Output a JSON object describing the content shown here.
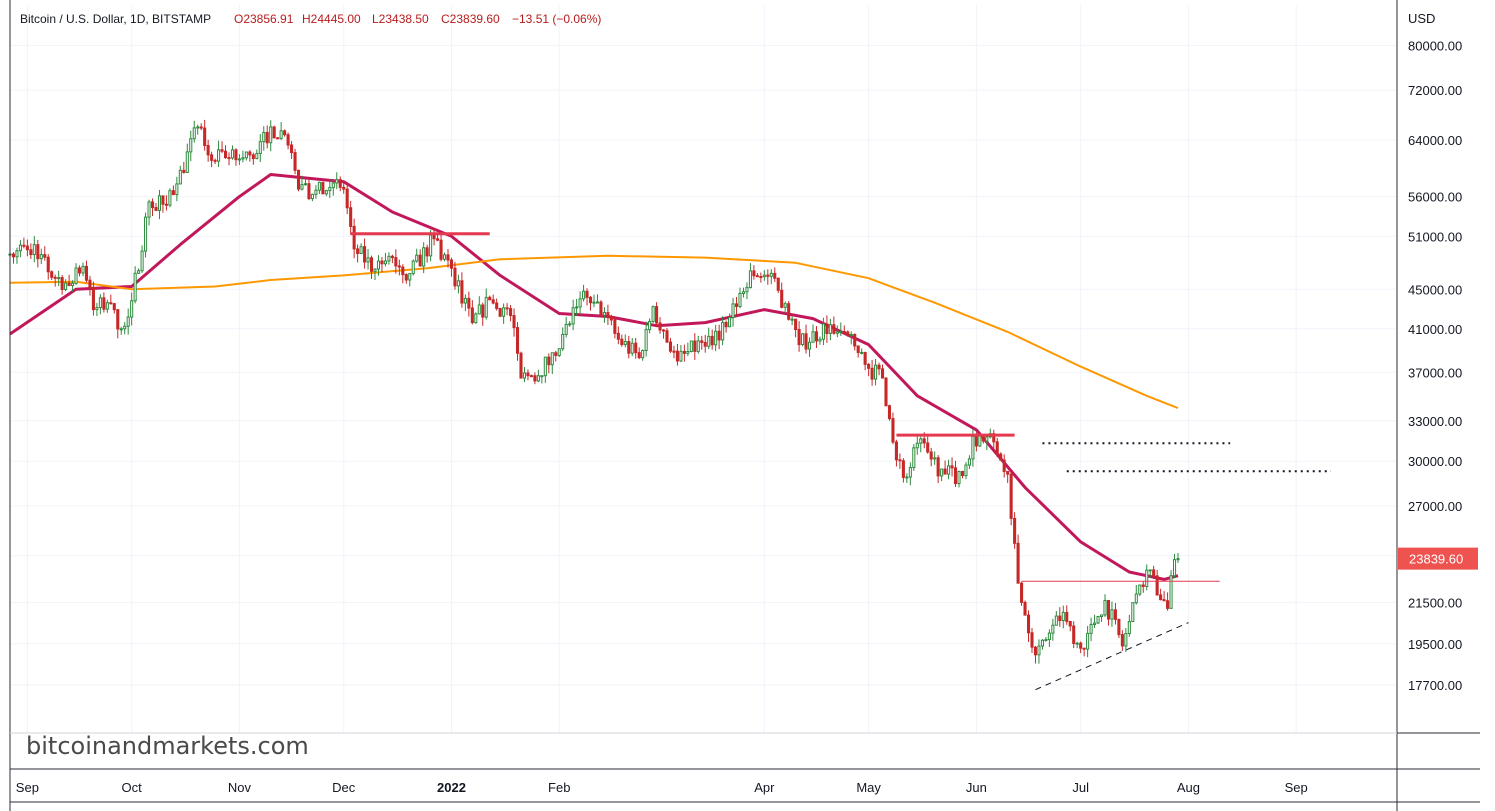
{
  "legend": {
    "symbol": "Bitcoin / U.S. Dollar, 1D, BITSTAMP",
    "open": "O23856.91",
    "high": "H24445.00",
    "low": "L23438.50",
    "close": "C23839.60",
    "change": "−13.51 (−0.06%)"
  },
  "watermark": "bitcoinandmarkets.com",
  "colors": {
    "up": "#26a69a",
    "up_body": "#2e8b3e",
    "down": "#c62828",
    "ma_short": "#c2185b",
    "ma_long": "#ff9800",
    "resistance": "#e53950",
    "price_label_bg": "#ef5350",
    "grid": "#f0f3fa",
    "text": "#131722",
    "legend_values": "#b71c1c"
  },
  "chart_data": {
    "type": "candlestick",
    "title": "Bitcoin / U.S. Dollar, 1D, BITSTAMP",
    "currency": "USD",
    "yscale": "log",
    "ylim": [
      15800,
      88000
    ],
    "y_ticks": [
      80000,
      72000,
      64000,
      56000,
      51000,
      45000,
      41000,
      37000,
      33000,
      30000,
      27000,
      24000,
      21500,
      19500,
      17700
    ],
    "y_tick_labels": [
      "80000.00",
      "72000.00",
      "64000.00",
      "56000.00",
      "51000.00",
      "45000.00",
      "41000.00",
      "37000.00",
      "33000.00",
      "30000.00",
      "27000.00",
      "",
      "21500.00",
      "19500.00",
      "17700.00"
    ],
    "x_range": [
      "2021-08-27",
      "2022-09-30"
    ],
    "x_ticks": [
      {
        "date": "2021-09-01",
        "label": "Sep",
        "bold": false
      },
      {
        "date": "2021-10-01",
        "label": "Oct",
        "bold": false
      },
      {
        "date": "2021-11-01",
        "label": "Nov",
        "bold": false
      },
      {
        "date": "2021-12-01",
        "label": "Dec",
        "bold": false
      },
      {
        "date": "2022-01-01",
        "label": "2022",
        "bold": true
      },
      {
        "date": "2022-02-01",
        "label": "Feb",
        "bold": false
      },
      {
        "date": "2022-04-01",
        "label": "Apr",
        "bold": false
      },
      {
        "date": "2022-05-01",
        "label": "May",
        "bold": false
      },
      {
        "date": "2022-06-01",
        "label": "Jun",
        "bold": false
      },
      {
        "date": "2022-07-01",
        "label": "Jul",
        "bold": false
      },
      {
        "date": "2022-08-01",
        "label": "Aug",
        "bold": false
      },
      {
        "date": "2022-09-01",
        "label": "Sep",
        "bold": false
      }
    ],
    "last_price": 23839.6,
    "last_price_label": "23839.60",
    "close_series": [
      [
        "2021-08-27",
        48900
      ],
      [
        "2021-09-03",
        50000
      ],
      [
        "2021-09-07",
        46900
      ],
      [
        "2021-09-13",
        45400
      ],
      [
        "2021-09-17",
        47500
      ],
      [
        "2021-09-20",
        42900
      ],
      [
        "2021-09-24",
        43600
      ],
      [
        "2021-09-28",
        41000
      ],
      [
        "2021-10-01",
        43800
      ],
      [
        "2021-10-06",
        55300
      ],
      [
        "2021-10-10",
        55000
      ],
      [
        "2021-10-14",
        57700
      ],
      [
        "2021-10-20",
        66000
      ],
      [
        "2021-10-24",
        61000
      ],
      [
        "2021-10-28",
        61400
      ],
      [
        "2021-11-01",
        61200
      ],
      [
        "2021-11-06",
        62000
      ],
      [
        "2021-11-10",
        66000
      ],
      [
        "2021-11-14",
        64800
      ],
      [
        "2021-11-18",
        57000
      ],
      [
        "2021-11-22",
        56300
      ],
      [
        "2021-11-27",
        57200
      ],
      [
        "2021-12-01",
        57000
      ],
      [
        "2021-12-04",
        49500
      ],
      [
        "2021-12-10",
        47200
      ],
      [
        "2021-12-15",
        48500
      ],
      [
        "2021-12-20",
        46700
      ],
      [
        "2021-12-27",
        50700
      ],
      [
        "2022-01-01",
        47300
      ],
      [
        "2022-01-07",
        41600
      ],
      [
        "2022-01-12",
        43900
      ],
      [
        "2022-01-18",
        42300
      ],
      [
        "2022-01-21",
        36500
      ],
      [
        "2022-01-24",
        36700
      ],
      [
        "2022-01-31",
        38500
      ],
      [
        "2022-02-07",
        44000
      ],
      [
        "2022-02-10",
        43600
      ],
      [
        "2022-02-14",
        42600
      ],
      [
        "2022-02-18",
        40000
      ],
      [
        "2022-02-24",
        38300
      ],
      [
        "2022-02-28",
        43200
      ],
      [
        "2022-03-07",
        38000
      ],
      [
        "2022-03-14",
        39700
      ],
      [
        "2022-03-21",
        41200
      ],
      [
        "2022-03-28",
        47000
      ],
      [
        "2022-04-02",
        46400
      ],
      [
        "2022-04-07",
        43500
      ],
      [
        "2022-04-11",
        39500
      ],
      [
        "2022-04-20",
        41400
      ],
      [
        "2022-04-25",
        40400
      ],
      [
        "2022-04-30",
        37700
      ],
      [
        "2022-05-05",
        36500
      ],
      [
        "2022-05-09",
        30100
      ],
      [
        "2022-05-12",
        28900
      ],
      [
        "2022-05-15",
        31300
      ],
      [
        "2022-05-23",
        29100
      ],
      [
        "2022-05-28",
        29000
      ],
      [
        "2022-05-31",
        31800
      ],
      [
        "2022-06-06",
        31400
      ],
      [
        "2022-06-10",
        29100
      ],
      [
        "2022-06-13",
        22500
      ],
      [
        "2022-06-18",
        19000
      ],
      [
        "2022-06-22",
        20000
      ],
      [
        "2022-06-26",
        21000
      ],
      [
        "2022-07-01",
        19300
      ],
      [
        "2022-07-08",
        21600
      ],
      [
        "2022-07-13",
        19400
      ],
      [
        "2022-07-18",
        22400
      ],
      [
        "2022-07-20",
        23200
      ],
      [
        "2022-07-26",
        21200
      ],
      [
        "2022-07-27",
        22900
      ],
      [
        "2022-07-29",
        23839.6
      ]
    ],
    "series": [
      {
        "name": "",
        "color": "#c2185b",
        "values": [
          [
            "2021-08-27",
            40500
          ],
          [
            "2021-09-15",
            45000
          ],
          [
            "2021-10-01",
            45300
          ],
          [
            "2021-10-15",
            50000
          ],
          [
            "2021-11-01",
            56000
          ],
          [
            "2021-11-10",
            59000
          ],
          [
            "2021-12-01",
            58000
          ],
          [
            "2021-12-15",
            54000
          ],
          [
            "2022-01-01",
            51000
          ],
          [
            "2022-01-15",
            46500
          ],
          [
            "2022-02-01",
            42500
          ],
          [
            "2022-02-15",
            42200
          ],
          [
            "2022-03-01",
            41300
          ],
          [
            "2022-03-15",
            41600
          ],
          [
            "2022-04-01",
            42900
          ],
          [
            "2022-04-15",
            42000
          ],
          [
            "2022-05-01",
            39500
          ],
          [
            "2022-05-15",
            35000
          ],
          [
            "2022-06-01",
            32300
          ],
          [
            "2022-06-15",
            28200
          ],
          [
            "2022-07-01",
            24800
          ],
          [
            "2022-07-15",
            23100
          ],
          [
            "2022-07-25",
            22700
          ],
          [
            "2022-07-29",
            22900
          ]
        ]
      },
      {
        "name": "",
        "color": "#ff9800",
        "values": [
          [
            "2021-08-27",
            45700
          ],
          [
            "2021-09-15",
            45800
          ],
          [
            "2021-10-01",
            45000
          ],
          [
            "2021-10-25",
            45300
          ],
          [
            "2021-11-10",
            46000
          ],
          [
            "2021-12-01",
            46500
          ],
          [
            "2021-12-25",
            47300
          ],
          [
            "2022-01-15",
            48300
          ],
          [
            "2022-02-15",
            48700
          ],
          [
            "2022-03-15",
            48500
          ],
          [
            "2022-04-10",
            47900
          ],
          [
            "2022-05-01",
            46200
          ],
          [
            "2022-05-20",
            43600
          ],
          [
            "2022-06-10",
            40700
          ],
          [
            "2022-07-01",
            37500
          ],
          [
            "2022-07-20",
            35000
          ],
          [
            "2022-07-29",
            34000
          ]
        ]
      }
    ],
    "annotations": [
      {
        "type": "hline",
        "price": 51300,
        "from": "2021-12-03",
        "to": "2022-01-12",
        "color": "#e53950",
        "style": "solid"
      },
      {
        "type": "hline",
        "price": 31900,
        "from": "2022-05-09",
        "to": "2022-06-12",
        "color": "#e53950",
        "style": "solid"
      },
      {
        "type": "hline",
        "price": 22600,
        "from": "2022-06-14",
        "to": "2022-08-10",
        "color": "#e53950",
        "style": "thin"
      },
      {
        "type": "hline",
        "price": 31300,
        "from": "2022-06-20",
        "to": "2022-08-13",
        "color": "#131722",
        "style": "dotted"
      },
      {
        "type": "hline",
        "price": 29300,
        "from": "2022-06-27",
        "to": "2022-09-11",
        "color": "#131722",
        "style": "dotted"
      },
      {
        "type": "trendline",
        "from": [
          "2022-06-18",
          17500
        ],
        "to": [
          "2022-08-01",
          20500
        ],
        "color": "#131722",
        "style": "dashed"
      }
    ]
  }
}
